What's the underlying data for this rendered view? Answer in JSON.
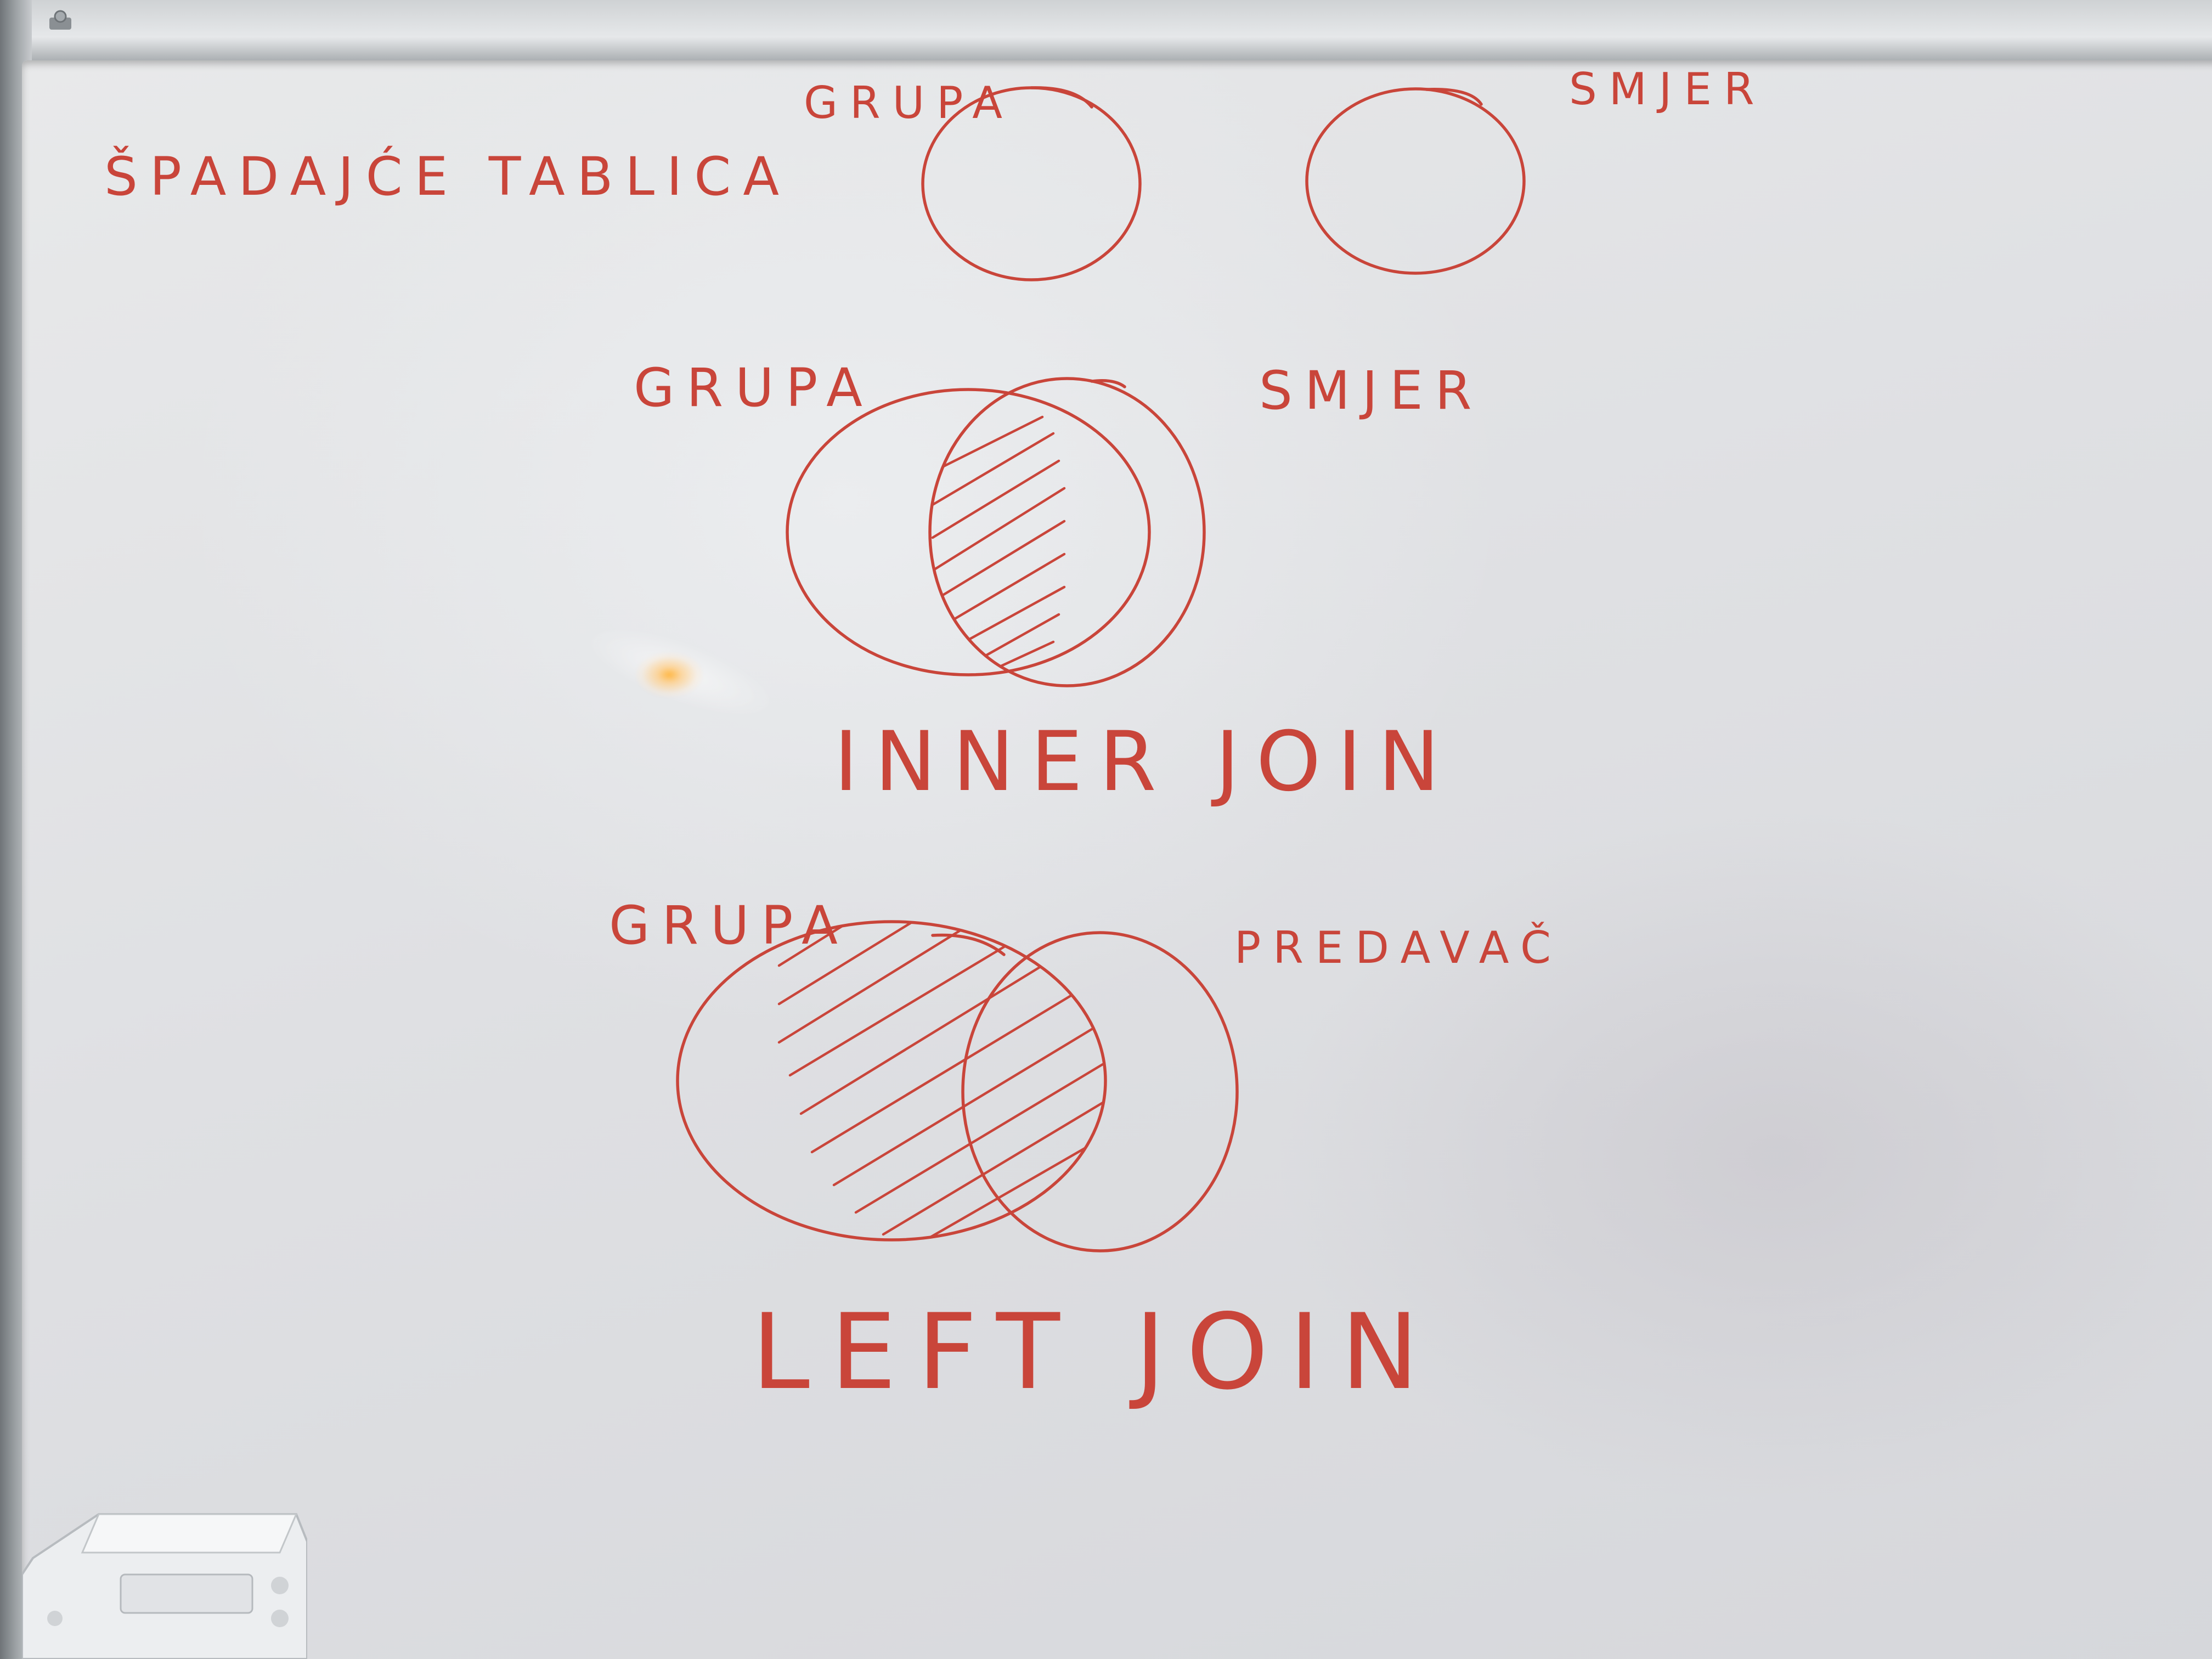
{
  "whiteboard": {
    "title": "ŠPADAJĆE TABLICA",
    "ink_color": "#c9453a",
    "board_color": "#e4e5e7",
    "top_pair": {
      "left_label": "GRUPA",
      "right_label": "SMJER"
    },
    "inner_join": {
      "left_label": "GRUPA",
      "right_label": "SMJER",
      "caption": "INNER JOIN",
      "shaded_region": "intersection"
    },
    "left_join": {
      "left_label": "GRUPA",
      "right_label": "PREDAVAČ",
      "caption": "LEFT JOIN",
      "shaded_region": "left-circle"
    }
  }
}
